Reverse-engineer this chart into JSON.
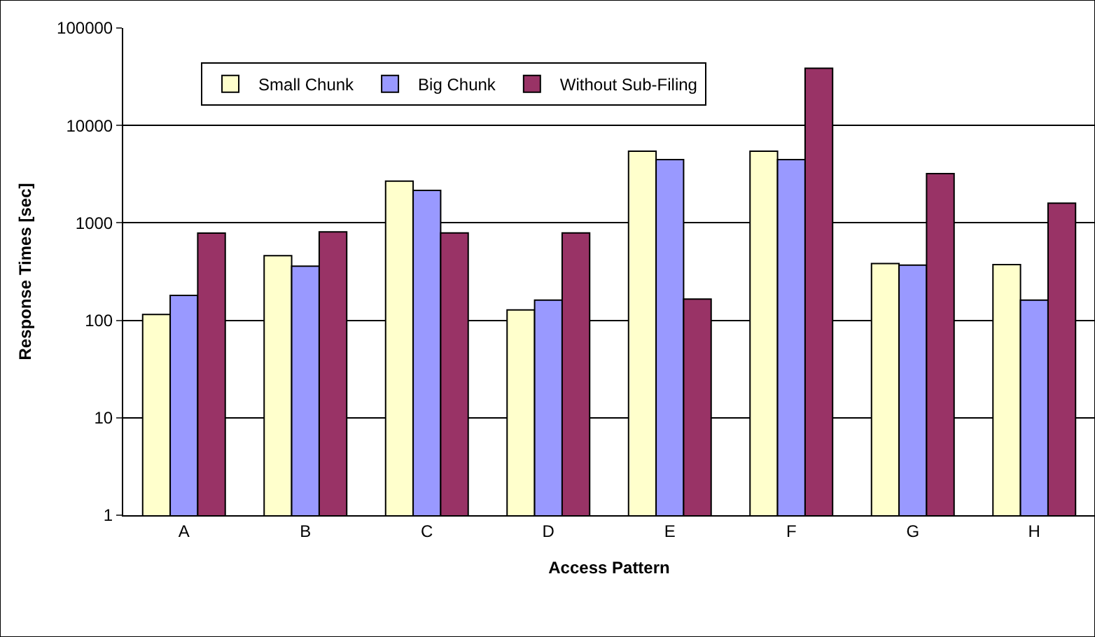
{
  "chart_data": {
    "type": "bar",
    "xlabel": "Access Pattern",
    "ylabel": "Response Times [sec]",
    "categories": [
      "A",
      "B",
      "C",
      "D",
      "E",
      "F",
      "G",
      "H"
    ],
    "series": [
      {
        "name": "Small Chunk",
        "color": "#ffffcc",
        "values": [
          115,
          460,
          2680,
          128,
          5440,
          5440,
          382,
          373
        ]
      },
      {
        "name": "Big Chunk",
        "color": "#9999ff",
        "values": [
          180,
          360,
          2150,
          161,
          4460,
          4460,
          369,
          161
        ]
      },
      {
        "name": "Without Sub-Filing",
        "color": "#993366",
        "values": [
          785,
          810,
          790,
          790,
          165,
          38600,
          3200,
          1590
        ]
      }
    ],
    "log": "y",
    "ylim": [
      1,
      100000
    ],
    "yticks": [
      1,
      10,
      100,
      1000,
      10000,
      100000
    ],
    "grid": "y",
    "legend": "top left"
  }
}
